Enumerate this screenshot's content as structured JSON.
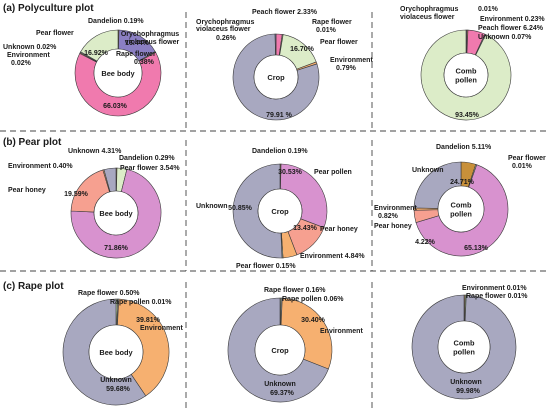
{
  "colors": {
    "Dandelion": "#c8903a",
    "Orychophragmus violaceus flower": "#8b7fc3",
    "Rape flower": "#b9d7a0",
    "Peach flower": "#f07aae",
    "Environment": "#f6b070",
    "Unknown": "#a8a8c0",
    "Pear flower": "#dcecc8",
    "Pear honey": "#f6a090",
    "Pear pollen": "#d892cf"
  },
  "sections": [
    {
      "label": "(a) Polyculture plot"
    },
    {
      "label": "(b) Pear plot"
    },
    {
      "label": "(c) Rape plot"
    }
  ],
  "chart_data": [
    {
      "type": "pie",
      "section": "(a) Polyculture plot",
      "center": [
        "Bee body"
      ],
      "slices": [
        {
          "label": "Dandelion",
          "value": 0.19,
          "text": "0.19%"
        },
        {
          "label": "Orychophragmus violaceus flower",
          "value": 16.44,
          "text": "16.44%"
        },
        {
          "label": "Rape flower",
          "value": 0.38,
          "text": "0.38%"
        },
        {
          "label": "Peach flower",
          "value": 66.03,
          "text": "66.03%"
        },
        {
          "label": "Environment",
          "value": 0.02,
          "text": "0.02%"
        },
        {
          "label": "Unknown",
          "value": 0.02,
          "text": "0.02%"
        },
        {
          "label": "Pear flower",
          "value": 16.92,
          "text": "16.92%"
        }
      ]
    },
    {
      "type": "pie",
      "section": "(a) Polyculture plot",
      "center": [
        "Crop"
      ],
      "slices": [
        {
          "label": "Peach flower",
          "value": 2.33,
          "text": "2.33%"
        },
        {
          "label": "Rape flower",
          "value": 0.01,
          "text": "0.01%"
        },
        {
          "label": "Pear flower",
          "value": 16.7,
          "text": "16.70%"
        },
        {
          "label": "Environment",
          "value": 0.79,
          "text": "0.79%"
        },
        {
          "label": "Unknown",
          "value": 79.91,
          "text": "79.91 %"
        },
        {
          "label": "Orychophragmus violaceus flower",
          "value": 0.26,
          "text": "0.26%"
        }
      ]
    },
    {
      "type": "pie",
      "section": "(a) Polyculture plot",
      "center": [
        "Comb",
        "pollen"
      ],
      "slices": [
        {
          "label": "Orychophragmus violaceus flower",
          "value": 0.01,
          "text": "0.01%"
        },
        {
          "label": "Environment",
          "value": 0.23,
          "text": "0.23%"
        },
        {
          "label": "Peach flower",
          "value": 6.24,
          "text": "6.24%"
        },
        {
          "label": "Unknown",
          "value": 0.07,
          "text": "0.07%"
        },
        {
          "label": "Pear flower",
          "value": 93.45,
          "text": "93.45%"
        }
      ]
    },
    {
      "type": "pie",
      "section": "(b) Pear plot",
      "center": [
        "Bee body"
      ],
      "slices": [
        {
          "label": "Dandelion",
          "value": 0.29,
          "text": "0.29%"
        },
        {
          "label": "Pear flower",
          "value": 3.54,
          "text": "3.54%"
        },
        {
          "label": "Pear pollen",
          "value": 71.86,
          "text": "71.86%"
        },
        {
          "label": "Pear honey",
          "value": 19.59,
          "text": "19.59%"
        },
        {
          "label": "Environment",
          "value": 0.4,
          "text": "0.40%"
        },
        {
          "label": "Unknown",
          "value": 4.31,
          "text": "4.31%"
        }
      ]
    },
    {
      "type": "pie",
      "section": "(b) Pear plot",
      "center": [
        "Crop"
      ],
      "slices": [
        {
          "label": "Dandelion",
          "value": 0.19,
          "text": "0.19%"
        },
        {
          "label": "Pear pollen",
          "value": 30.53,
          "text": "30.53%"
        },
        {
          "label": "Pear honey",
          "value": 13.43,
          "text": "13.43%"
        },
        {
          "label": "Environment",
          "value": 4.84,
          "text": "4.84%"
        },
        {
          "label": "Pear flower",
          "value": 0.15,
          "text": "0.15%"
        },
        {
          "label": "Unknown",
          "value": 50.85,
          "text": "50.85%"
        }
      ]
    },
    {
      "type": "pie",
      "section": "(b) Pear plot",
      "center": [
        "Comb",
        "pollen"
      ],
      "slices": [
        {
          "label": "Dandelion",
          "value": 5.11,
          "text": "5.11%"
        },
        {
          "label": "Pear flower",
          "value": 0.01,
          "text": "0.01%"
        },
        {
          "label": "Pear pollen",
          "value": 65.13,
          "text": "65.13%"
        },
        {
          "label": "Pear honey",
          "value": 4.22,
          "text": "4.22%"
        },
        {
          "label": "Environment",
          "value": 0.82,
          "text": "0.82%"
        },
        {
          "label": "Unknown",
          "value": 24.71,
          "text": "24.71%"
        }
      ]
    },
    {
      "type": "pie",
      "section": "(c) Rape plot",
      "center": [
        "Bee body"
      ],
      "slices": [
        {
          "label": "Rape flower",
          "value": 0.5,
          "text": "0.50%"
        },
        {
          "label": "Rape pollen",
          "value": 0.01,
          "text": "0.01%"
        },
        {
          "label": "Environment",
          "value": 39.81,
          "text": "39.81%"
        },
        {
          "label": "Unknown",
          "value": 59.68,
          "text": "59.68%"
        }
      ]
    },
    {
      "type": "pie",
      "section": "(c) Rape plot",
      "center": [
        "Crop"
      ],
      "slices": [
        {
          "label": "Rape flower",
          "value": 0.16,
          "text": "0.16%"
        },
        {
          "label": "Rape pollen",
          "value": 0.06,
          "text": "0.06%"
        },
        {
          "label": "Environment",
          "value": 30.4,
          "text": "30.40%"
        },
        {
          "label": "Unknown",
          "value": 69.37,
          "text": "69.37%"
        }
      ]
    },
    {
      "type": "pie",
      "section": "(c) Rape plot",
      "center": [
        "Comb",
        "pollen"
      ],
      "slices": [
        {
          "label": "Environment",
          "value": 0.01,
          "text": "0.01%"
        },
        {
          "label": "Rape flower",
          "value": 0.01,
          "text": "0.01%"
        },
        {
          "label": "Unknown",
          "value": 99.98,
          "text": "99.98%"
        }
      ]
    }
  ]
}
